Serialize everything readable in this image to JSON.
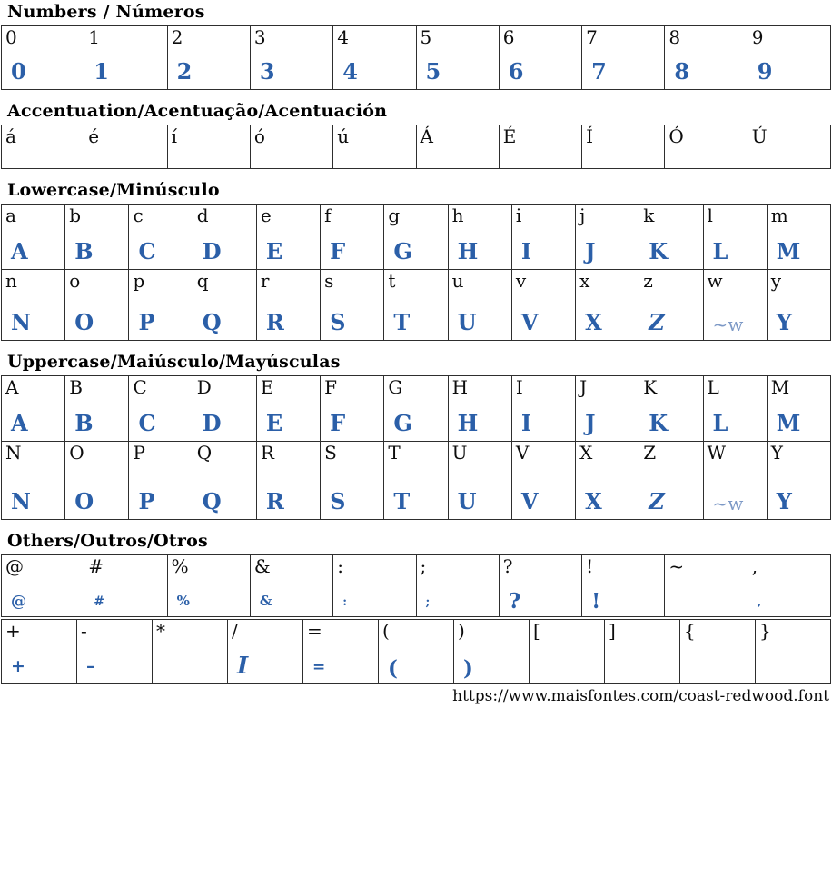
{
  "page": {
    "accent_color": "#2b5fa8",
    "border_color": "#2e2e2e"
  },
  "footer": {
    "url": "https://www.maisfontes.com/coast-redwood.font"
  },
  "sections": [
    {
      "id": "numbers",
      "title": "Numbers / Números",
      "rows": [
        {
          "cells": [
            {
              "label": "0",
              "glyph": "0"
            },
            {
              "label": "1",
              "glyph": "1"
            },
            {
              "label": "2",
              "glyph": "2"
            },
            {
              "label": "3",
              "glyph": "3"
            },
            {
              "label": "4",
              "glyph": "4"
            },
            {
              "label": "5",
              "glyph": "5"
            },
            {
              "label": "6",
              "glyph": "6"
            },
            {
              "label": "7",
              "glyph": "7"
            },
            {
              "label": "8",
              "glyph": "8"
            },
            {
              "label": "9",
              "glyph": "9"
            }
          ]
        }
      ]
    },
    {
      "id": "accentuation",
      "title": "Accentuation/Acentuação/Acentuación",
      "rows": [
        {
          "cells": [
            {
              "label": "á",
              "glyph": ""
            },
            {
              "label": "é",
              "glyph": ""
            },
            {
              "label": "í",
              "glyph": ""
            },
            {
              "label": "ó",
              "glyph": ""
            },
            {
              "label": "ú",
              "glyph": ""
            },
            {
              "label": "Á",
              "glyph": ""
            },
            {
              "label": "É",
              "glyph": ""
            },
            {
              "label": "Í",
              "glyph": ""
            },
            {
              "label": "Ó",
              "glyph": ""
            },
            {
              "label": "Ú",
              "glyph": ""
            }
          ]
        }
      ]
    },
    {
      "id": "lowercase",
      "title": "Lowercase/Minúsculo",
      "rows": [
        {
          "cells": [
            {
              "label": "a",
              "glyph": "A"
            },
            {
              "label": "b",
              "glyph": "B"
            },
            {
              "label": "c",
              "glyph": "C"
            },
            {
              "label": "d",
              "glyph": "D"
            },
            {
              "label": "e",
              "glyph": "E"
            },
            {
              "label": "f",
              "glyph": "F"
            },
            {
              "label": "g",
              "glyph": "G"
            },
            {
              "label": "h",
              "glyph": "H"
            },
            {
              "label": "i",
              "glyph": "I"
            },
            {
              "label": "j",
              "glyph": "J"
            },
            {
              "label": "k",
              "glyph": "K"
            },
            {
              "label": "l",
              "glyph": "L"
            },
            {
              "label": "m",
              "glyph": "M"
            }
          ]
        },
        {
          "cells": [
            {
              "label": "n",
              "glyph": "N"
            },
            {
              "label": "o",
              "glyph": "O"
            },
            {
              "label": "p",
              "glyph": "P"
            },
            {
              "label": "q",
              "glyph": "Q"
            },
            {
              "label": "r",
              "glyph": "R"
            },
            {
              "label": "s",
              "glyph": "S"
            },
            {
              "label": "t",
              "glyph": "T"
            },
            {
              "label": "u",
              "glyph": "U"
            },
            {
              "label": "v",
              "glyph": "V"
            },
            {
              "label": "x",
              "glyph": "X"
            },
            {
              "label": "z",
              "glyph": "Z"
            },
            {
              "label": "w",
              "glyph": "~w"
            },
            {
              "label": "y",
              "glyph": "Y"
            }
          ]
        }
      ]
    },
    {
      "id": "uppercase",
      "title": "Uppercase/Maiúsculo/Mayúsculas",
      "rows": [
        {
          "cells": [
            {
              "label": "A",
              "glyph": "A"
            },
            {
              "label": "B",
              "glyph": "B"
            },
            {
              "label": "C",
              "glyph": "C"
            },
            {
              "label": "D",
              "glyph": "D"
            },
            {
              "label": "E",
              "glyph": "E"
            },
            {
              "label": "F",
              "glyph": "F"
            },
            {
              "label": "G",
              "glyph": "G"
            },
            {
              "label": "H",
              "glyph": "H"
            },
            {
              "label": "I",
              "glyph": "I"
            },
            {
              "label": "J",
              "glyph": "J"
            },
            {
              "label": "K",
              "glyph": "K"
            },
            {
              "label": "L",
              "glyph": "L"
            },
            {
              "label": "M",
              "glyph": "M"
            }
          ]
        },
        {
          "cells": [
            {
              "label": "N",
              "glyph": "N"
            },
            {
              "label": "O",
              "glyph": "O"
            },
            {
              "label": "P",
              "glyph": "P"
            },
            {
              "label": "Q",
              "glyph": "Q"
            },
            {
              "label": "R",
              "glyph": "R"
            },
            {
              "label": "S",
              "glyph": "S"
            },
            {
              "label": "T",
              "glyph": "T"
            },
            {
              "label": "U",
              "glyph": "U"
            },
            {
              "label": "V",
              "glyph": "V"
            },
            {
              "label": "X",
              "glyph": "X"
            },
            {
              "label": "Z",
              "glyph": "Z"
            },
            {
              "label": "W",
              "glyph": "~w"
            },
            {
              "label": "Y",
              "glyph": "Y"
            }
          ]
        }
      ]
    },
    {
      "id": "others",
      "title": "Others/Outros/Otros",
      "rows": [
        {
          "cells": [
            {
              "label": "@",
              "glyph": "@"
            },
            {
              "label": "#",
              "glyph": "#"
            },
            {
              "label": "%",
              "glyph": "%"
            },
            {
              "label": "&",
              "glyph": "&"
            },
            {
              "label": ":",
              "glyph": ":"
            },
            {
              "label": ";",
              "glyph": ";"
            },
            {
              "label": "?",
              "glyph": "?"
            },
            {
              "label": "!",
              "glyph": "!"
            },
            {
              "label": "~",
              "glyph": ""
            },
            {
              "label": ",",
              "glyph": ","
            }
          ]
        },
        {
          "cells": [
            {
              "label": "+",
              "glyph": "+"
            },
            {
              "label": "-",
              "glyph": "–"
            },
            {
              "label": "*",
              "glyph": ""
            },
            {
              "label": "/",
              "glyph": "I"
            },
            {
              "label": "=",
              "glyph": "="
            },
            {
              "label": "(",
              "glyph": "("
            },
            {
              "label": ")",
              "glyph": ")"
            },
            {
              "label": "[",
              "glyph": ""
            },
            {
              "label": "]",
              "glyph": ""
            },
            {
              "label": "{",
              "glyph": ""
            },
            {
              "label": "}",
              "glyph": ""
            }
          ]
        }
      ]
    }
  ]
}
